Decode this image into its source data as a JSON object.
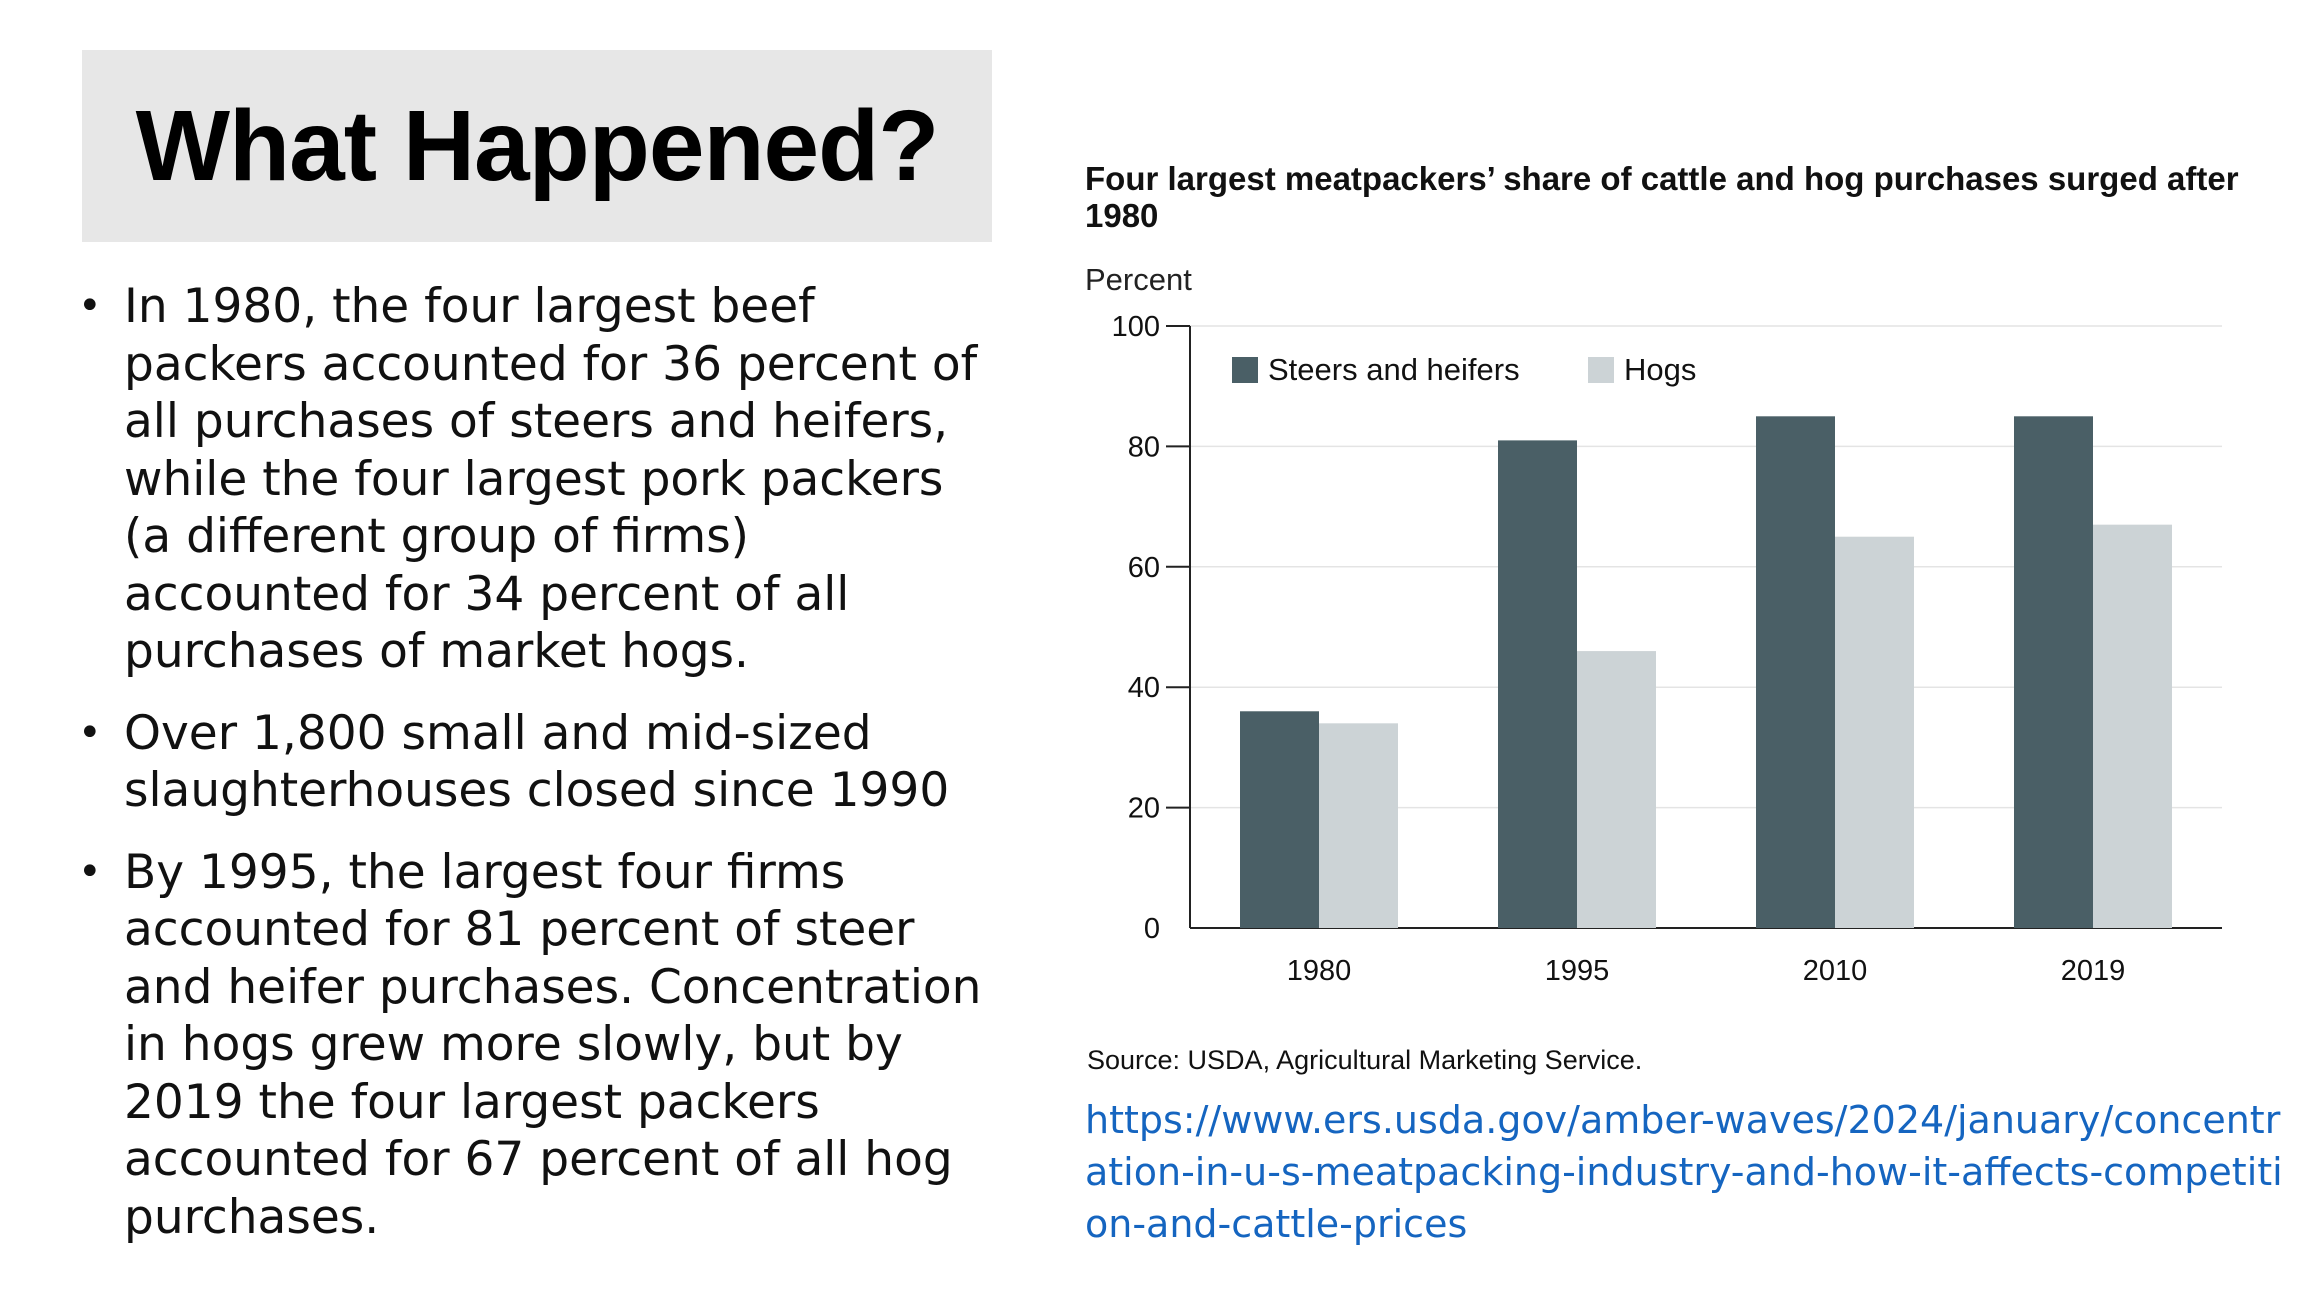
{
  "slide": {
    "title": "What Happened?",
    "bullets": [
      "In 1980, the four largest beef packers accounted for 36 percent of all purchases of steers and heifers, while the four largest pork packers (a different group of firms) accounted for 34 percent of all purchases of market hogs.",
      "Over 1,800 small and mid-sized slaughterhouses closed since 1990",
      "By 1995, the largest four firms accounted for 81 percent of steer and heifer purchases. Concentration in hogs grew more slowly, but by 2019 the four largest packers accounted for 67 percent of all hog purchases."
    ],
    "bullet_symbol": "•",
    "source": "Source: USDA, Agricultural Marketing Service.",
    "link": "https://www.ers.usda.gov/amber-waves/2024/january/concentration-in-u-s-meatpacking-industry-and-how-it-affects-competition-and-cattle-prices"
  },
  "colors": {
    "steers": "#4a5f66",
    "hogs": "#ccd3d6",
    "title_bg": "#e7e7e7",
    "link": "#1565c0"
  },
  "chart_data": {
    "type": "bar",
    "title": "Four largest meatpackers’ share of cattle and hog purchases surged after 1980",
    "xlabel": "",
    "ylabel": "Percent",
    "ylim": [
      0,
      100
    ],
    "yticks": [
      0,
      20,
      40,
      60,
      80,
      100
    ],
    "grid": true,
    "legend": "top-left",
    "categories": [
      "1980",
      "1995",
      "2010",
      "2019"
    ],
    "series": [
      {
        "name": "Steers and heifers",
        "values": [
          36,
          81,
          85,
          85
        ]
      },
      {
        "name": "Hogs",
        "values": [
          34,
          46,
          65,
          67
        ]
      }
    ]
  }
}
